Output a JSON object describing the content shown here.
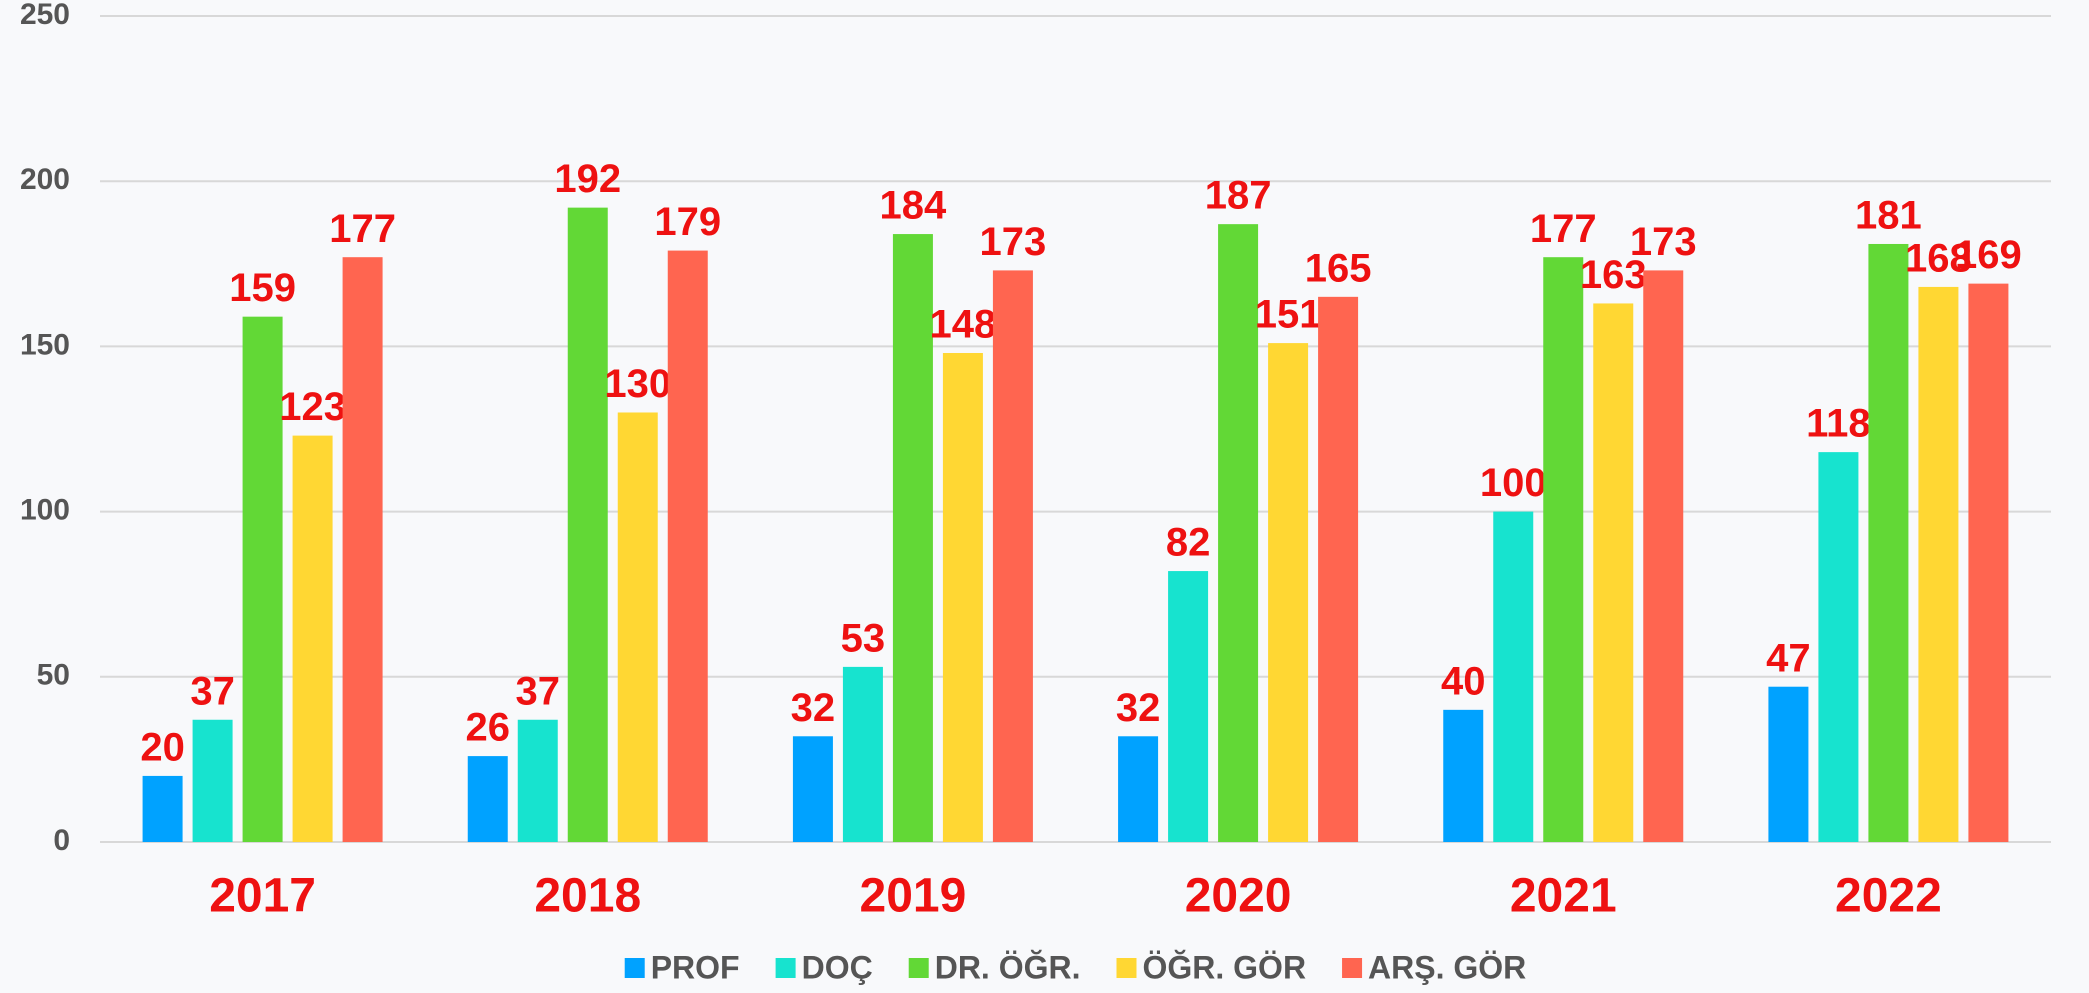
{
  "chart_data": {
    "type": "bar",
    "categories": [
      "2017",
      "2018",
      "2019",
      "2020",
      "2021",
      "2022"
    ],
    "series": [
      {
        "name": "PROF",
        "color": "#00a2ff",
        "values": [
          20,
          26,
          32,
          32,
          40,
          47
        ]
      },
      {
        "name": "DOÇ",
        "color": "#17e3cf",
        "values": [
          37,
          37,
          53,
          82,
          100,
          118
        ]
      },
      {
        "name": "DR. ÖĞR.",
        "color": "#62d836",
        "values": [
          159,
          192,
          184,
          187,
          177,
          181
        ]
      },
      {
        "name": "ÖĞR. GÖR",
        "color": "#ffd733",
        "values": [
          123,
          130,
          148,
          151,
          163,
          168
        ]
      },
      {
        "name": "ARŞ. GÖR",
        "color": "#ff6550",
        "values": [
          177,
          179,
          173,
          165,
          173,
          169
        ]
      }
    ],
    "ylim": [
      0,
      250
    ],
    "yticks": [
      0,
      50,
      100,
      150,
      200,
      250
    ],
    "grid": true,
    "legend": "bottom"
  }
}
